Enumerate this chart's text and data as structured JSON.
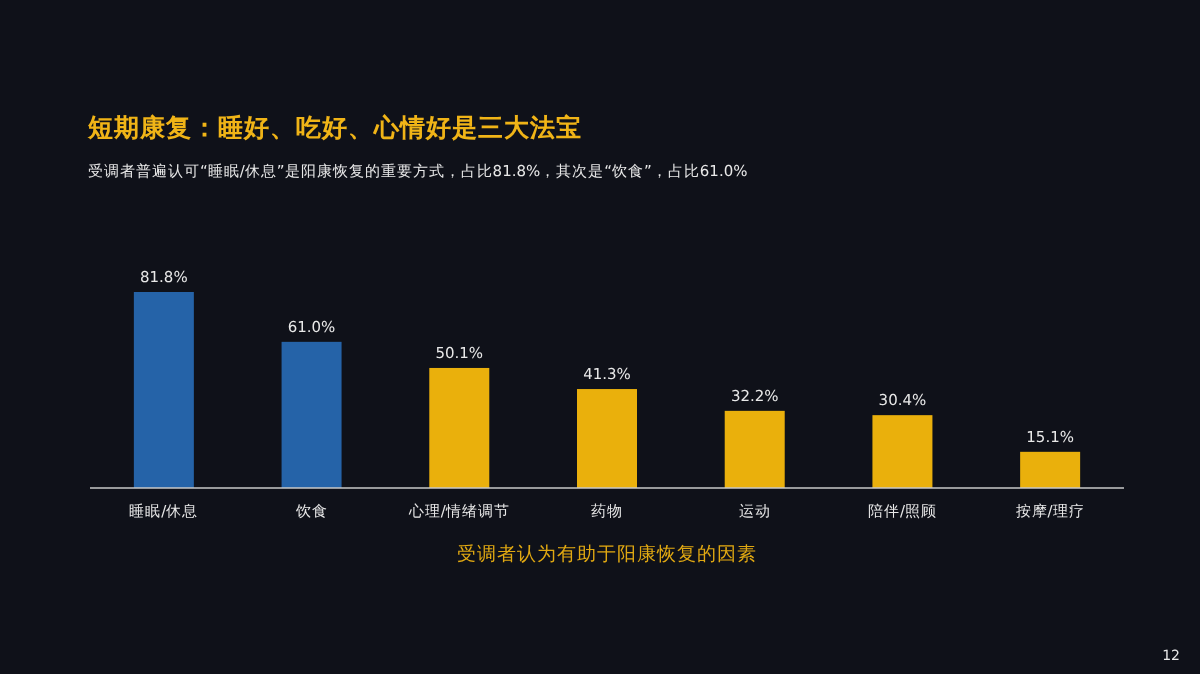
{
  "chart_data": {
    "type": "bar",
    "title": "短期康复：睡好、吃好、心情好是三大法宝",
    "subtitle": "受调者普遍认可“睡眠/休息”是阳康恢复的重要方式，占比81.8%，其次是“饮食”，占比61.0%",
    "xlabel": "受调者认为有助于阳康恢复的因素",
    "categories": [
      "睡眠/休息",
      "饮食",
      "心理/情绪调节",
      "药物",
      "运动",
      "陪伴/照顾",
      "按摩/理疗"
    ],
    "values": [
      81.8,
      61.0,
      50.1,
      41.3,
      32.2,
      30.4,
      15.1
    ],
    "value_labels": [
      "81.8%",
      "61.0%",
      "50.1%",
      "41.3%",
      "32.2%",
      "30.4%",
      "15.1%"
    ],
    "colors": [
      "#2563a8",
      "#2563a8",
      "#eab00c",
      "#eab00c",
      "#eab00c",
      "#eab00c",
      "#eab00c"
    ],
    "annotations": [
      "12"
    ]
  }
}
